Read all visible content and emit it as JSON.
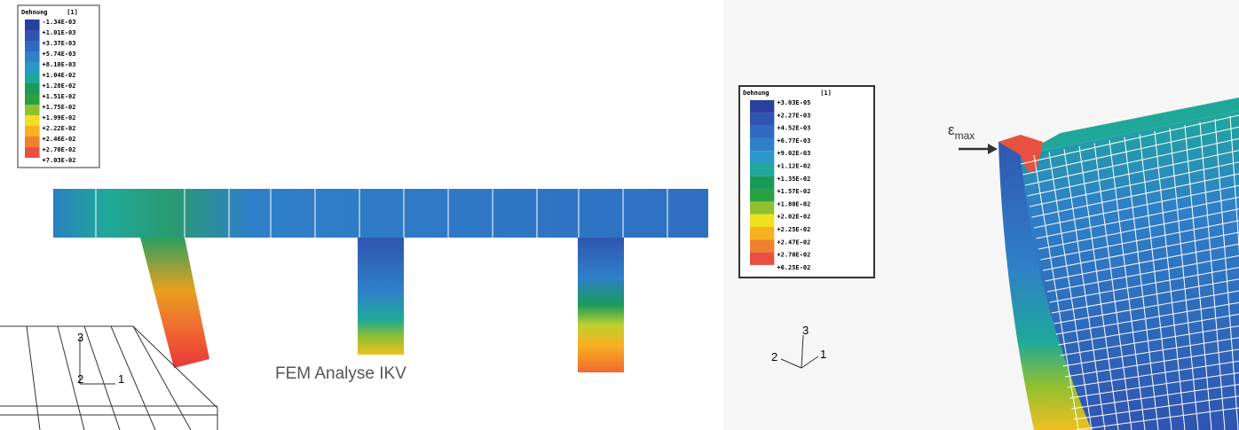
{
  "legends": [
    {
      "title": "Dehnung",
      "unit": "[1]",
      "entries": [
        "-1.34E-03",
        "+1.01E-03",
        "+3.37E-03",
        "+5.74E-03",
        "+8.10E-03",
        "+1.04E-02",
        "+1.28E-02",
        "+1.51E-02",
        "+1.75E-02",
        "+1.99E-02",
        "+2.22E-02",
        "+2.46E-02",
        "+2.70E-02",
        "+7.03E-02"
      ]
    },
    {
      "title": "Dehnung",
      "unit": "[1]",
      "entries": [
        "+3.03E-05",
        "+2.27E-03",
        "+4.52E-03",
        "+6.77E-03",
        "+9.02E-03",
        "+1.12E-02",
        "+1.35E-02",
        "+1.57E-02",
        "+1.80E-02",
        "+2.02E-02",
        "+2.25E-02",
        "+2.47E-02",
        "+2.70E-02",
        "+6.25E-02"
      ]
    }
  ],
  "caption": "FEM Analyse IKV",
  "left_axes": {
    "axis3": "3",
    "axis2": "2",
    "axis1": "1"
  },
  "right_axes": {
    "axis3": "3",
    "axis2": "2",
    "axis1": "1"
  },
  "annotation": {
    "symbol": "ε",
    "subscript": "max"
  }
}
